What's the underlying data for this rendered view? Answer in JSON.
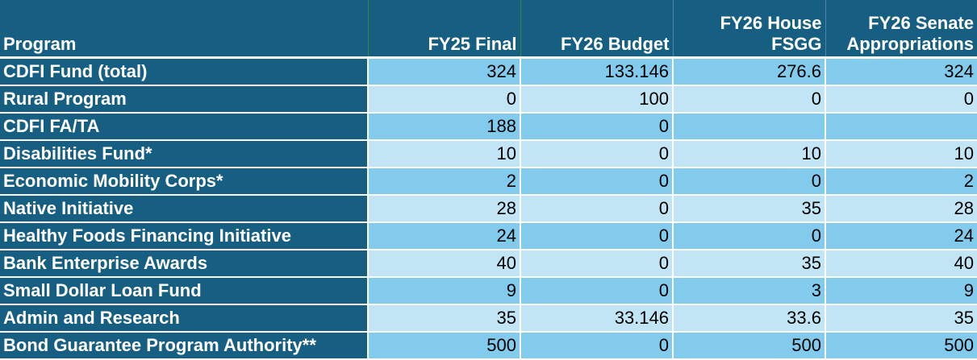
{
  "table": {
    "headers": {
      "program": "Program",
      "fy25_final": "FY25 Final",
      "fy26_budget": "FY26 Budget",
      "fy26_house_line1": "FY26 House",
      "fy26_house_line2": "FSGG",
      "fy26_senate_line1": "FY26 Senate",
      "fy26_senate_line2": "Appropriations"
    },
    "rows": [
      {
        "program": "CDFI Fund (total)",
        "fy25": "324",
        "fy26_budget": "133.146",
        "house": "276.6",
        "senate": "324"
      },
      {
        "program": "Rural Program",
        "fy25": "0",
        "fy26_budget": "100",
        "house": "0",
        "senate": "0"
      },
      {
        "program": "CDFI FA/TA",
        "fy25": "188",
        "fy26_budget": "0",
        "house": "",
        "senate": ""
      },
      {
        "program": "Disabilities Fund*",
        "fy25": "10",
        "fy26_budget": "0",
        "house": "10",
        "senate": "10"
      },
      {
        "program": "Economic Mobility Corps*",
        "fy25": "2",
        "fy26_budget": "0",
        "house": "0",
        "senate": "2"
      },
      {
        "program": "Native Initiative",
        "fy25": "28",
        "fy26_budget": "0",
        "house": "35",
        "senate": "28"
      },
      {
        "program": "Healthy Foods Financing Initiative",
        "fy25": "24",
        "fy26_budget": "0",
        "house": "0",
        "senate": "24"
      },
      {
        "program": "Bank Enterprise Awards",
        "fy25": "40",
        "fy26_budget": "0",
        "house": "35",
        "senate": "40"
      },
      {
        "program": "Small Dollar Loan Fund",
        "fy25": "9",
        "fy26_budget": "0",
        "house": "3",
        "senate": "9"
      },
      {
        "program": "Admin and Research",
        "fy25": "35",
        "fy26_budget": "33.146",
        "house": "33.6",
        "senate": "35"
      },
      {
        "program": "Bond Guarantee Program Authority**",
        "fy25": "500",
        "fy26_budget": "0",
        "house": "500",
        "senate": "500"
      }
    ]
  }
}
